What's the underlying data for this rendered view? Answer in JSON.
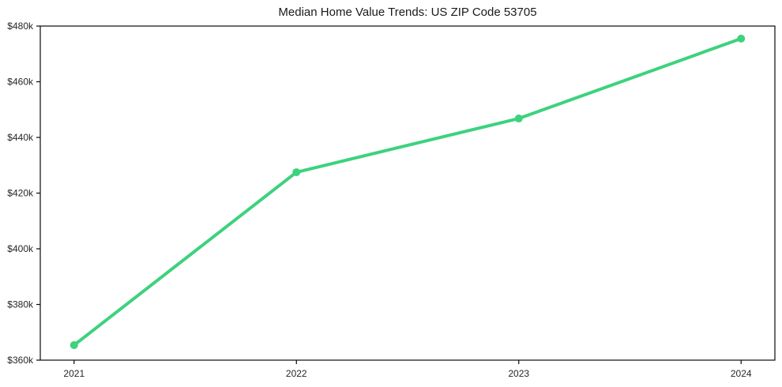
{
  "colors": {
    "line": "#3dd27e",
    "marker": "#3dd27e",
    "axis": "#0a0a0a",
    "text": "#262626",
    "title_text": "#1a1a1a",
    "background": "#ffffff"
  },
  "chart_data": {
    "type": "line",
    "title": "Median Home Value Trends: US ZIP Code 53705",
    "x": [
      "2021",
      "2022",
      "2023",
      "2024"
    ],
    "series": [
      {
        "name": "Median Home Value",
        "values": [
          365400,
          427500,
          446800,
          475500
        ]
      }
    ],
    "xlabel": "",
    "ylabel": "",
    "ylim": [
      360000,
      480000
    ],
    "yticks": [
      360000,
      380000,
      400000,
      420000,
      440000,
      460000,
      480000
    ],
    "ytick_labels": [
      "$360k",
      "$380k",
      "$400k",
      "$420k",
      "$440k",
      "$460k",
      "$480k"
    ],
    "grid": false,
    "legend_position": "none",
    "marker_style": "circle"
  }
}
